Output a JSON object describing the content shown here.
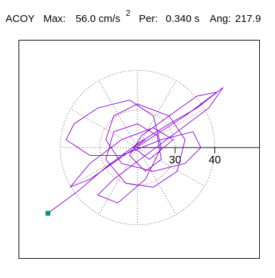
{
  "chart_data": {
    "type": "orbit",
    "header": {
      "channel": "ACOY",
      "max_label": "Max:",
      "max_value": "56.0 cm/s",
      "max_exp": "2",
      "per_label": "Per:",
      "per_value": "0.340 s",
      "ang_label": "Ang:",
      "ang_value": "217.9"
    },
    "xlim": [
      20.5,
      51.2
    ],
    "xticks": [
      30,
      40
    ],
    "series": [
      {
        "color": "#8a00d4",
        "marker_color": "#00996a",
        "x": [
          -22.6,
          -15,
          -8,
          0,
          8,
          15,
          21.6,
          18,
          10,
          2,
          -6,
          -10,
          -5,
          2,
          6,
          4,
          -2,
          -10,
          -16,
          -18,
          -12,
          -4,
          6,
          14,
          16,
          12,
          4,
          -4,
          -8,
          -6,
          0,
          8,
          12,
          10,
          4,
          -3,
          -8,
          -6,
          0,
          5,
          6,
          2,
          -2,
          1,
          15,
          20,
          12,
          -2,
          -12,
          -17,
          -12,
          -4,
          4,
          9,
          3,
          -1,
          2
        ],
        "y": [
          -16.6,
          -11,
          -5,
          1,
          6,
          10,
          15.2,
          10,
          4,
          -2,
          -8,
          -12,
          -14,
          -8,
          0,
          8,
          12,
          10,
          6,
          2,
          -2,
          -2,
          2,
          4,
          0,
          -4,
          -6,
          -4,
          2,
          8,
          11,
          8,
          2,
          -6,
          -10,
          -9,
          -3,
          4,
          6,
          3,
          -3,
          -6,
          -2,
          3,
          13,
          14,
          8,
          -1,
          -8,
          -10,
          -4,
          2,
          5,
          2,
          -3,
          0,
          2
        ]
      }
    ]
  }
}
